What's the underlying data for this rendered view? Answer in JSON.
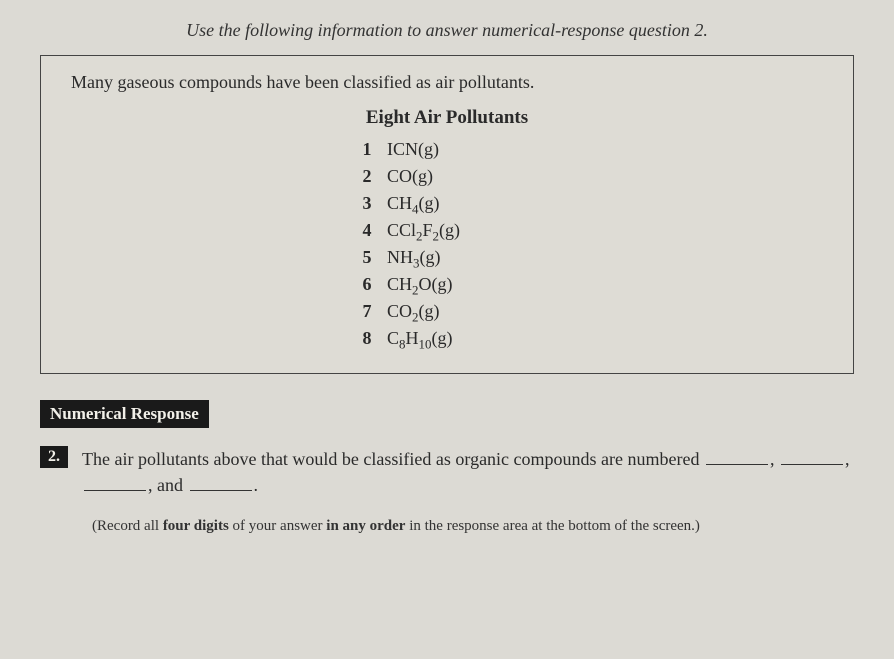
{
  "instruction": "Use the following information to answer numerical-response question 2.",
  "info": {
    "intro": "Many gaseous compounds have been classified as air pollutants.",
    "list_title": "Eight Air Pollutants",
    "items": [
      {
        "num": "1",
        "formula_html": "ICN(g)"
      },
      {
        "num": "2",
        "formula_html": "CO(g)"
      },
      {
        "num": "3",
        "formula_html": "CH<span class=\"sub\">4</span>(g)"
      },
      {
        "num": "4",
        "formula_html": "CCl<span class=\"sub\">2</span>F<span class=\"sub\">2</span>(g)"
      },
      {
        "num": "5",
        "formula_html": "NH<span class=\"sub\">3</span>(g)"
      },
      {
        "num": "6",
        "formula_html": "CH<span class=\"sub\">2</span>O(g)"
      },
      {
        "num": "7",
        "formula_html": "CO<span class=\"sub\">2</span>(g)"
      },
      {
        "num": "8",
        "formula_html": "C<span class=\"sub\">8</span>H<span class=\"sub\">10</span>(g)"
      }
    ]
  },
  "nr_badge": "Numerical Response",
  "question": {
    "number": "2.",
    "text_before": "The air pollutants above that would be classified as organic compounds are numbered",
    "and": ", and",
    "period": "."
  },
  "record_note_parts": {
    "a": "(Record all ",
    "b": "four digits",
    "c": " of your answer ",
    "d": "in any order",
    "e": " in the response area at the bottom of the screen.)"
  },
  "colors": {
    "page_bg": "#dcdad4",
    "text": "#2a2a2a",
    "box_border": "#444",
    "badge_bg": "#1a1a1a",
    "badge_fg": "#f2f0e9"
  }
}
